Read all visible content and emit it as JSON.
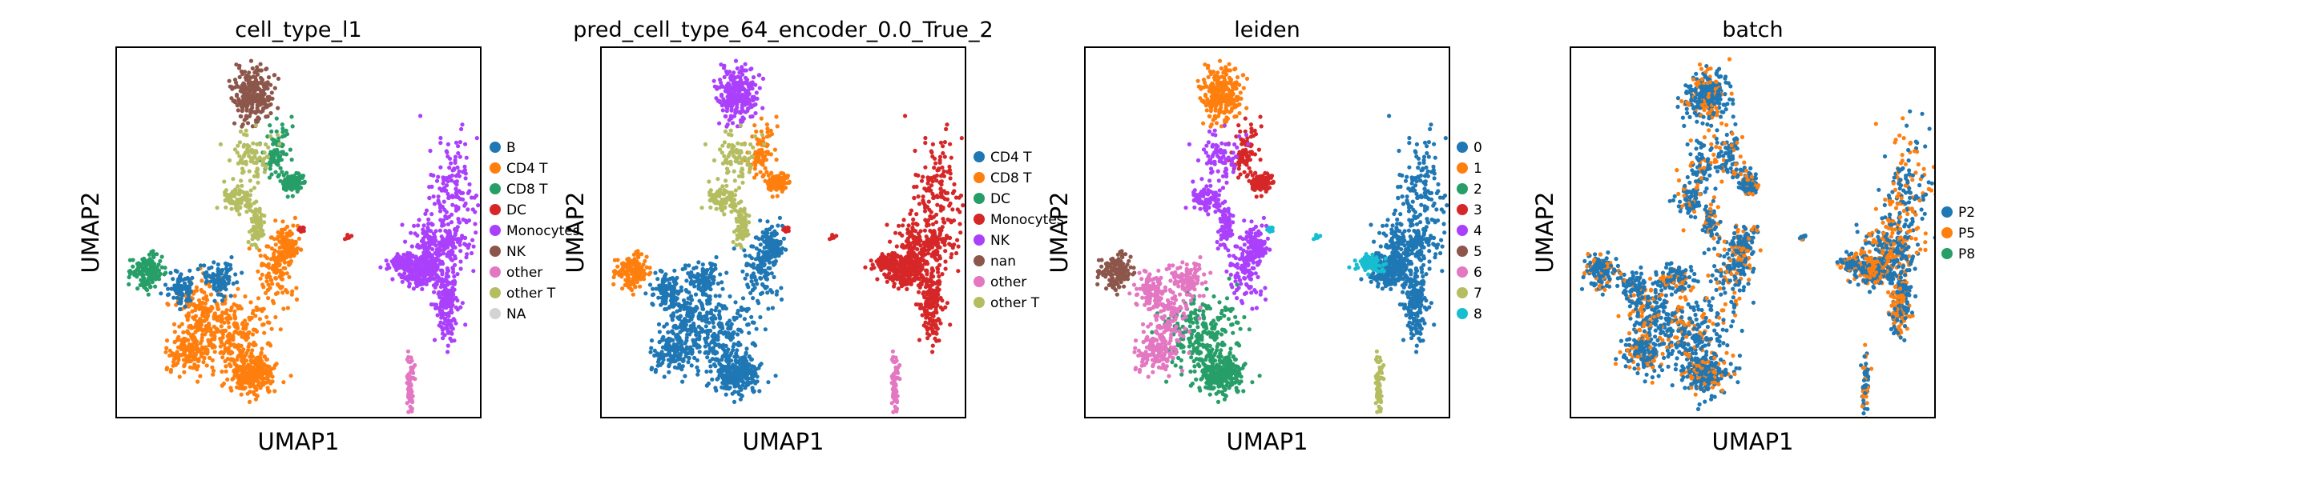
{
  "chart_data": [
    {
      "type": "scatter",
      "title": "cell_type_l1",
      "xlabel": "UMAP1",
      "ylabel": "UMAP2",
      "grid": false,
      "legend_position": "right",
      "series": [
        {
          "name": "B",
          "color": "#1f77b4"
        },
        {
          "name": "CD4 T",
          "color": "#ff7f0e"
        },
        {
          "name": "CD8 T",
          "color": "#279e68"
        },
        {
          "name": "DC",
          "color": "#d62728"
        },
        {
          "name": "Monocytes",
          "color": "#aa40fc"
        },
        {
          "name": "NK",
          "color": "#8c564b"
        },
        {
          "name": "other",
          "color": "#e377c2"
        },
        {
          "name": "other T",
          "color": "#b5bd61"
        },
        {
          "name": "NA",
          "color": "#d3d3d3"
        }
      ],
      "clusters": {
        "left_island": "CD8 T",
        "lower_left_1": "CD4 T",
        "lower_left_2": "CD4 T",
        "lower_left_top": "B",
        "lower_mid": "CD4 T",
        "top_peak": "NK",
        "top_right_arm": "CD8 T",
        "top_mid": "other T",
        "right_body": "Monocytes",
        "right_tail": "Monocytes",
        "bottom_tail": "other",
        "dc_patch": "DC"
      }
    },
    {
      "type": "scatter",
      "title": "pred_cell_type_64_encoder_0.0_True_2",
      "xlabel": "UMAP1",
      "ylabel": "UMAP2",
      "grid": false,
      "legend_position": "right",
      "series": [
        {
          "name": "CD4 T",
          "color": "#1f77b4"
        },
        {
          "name": "CD8 T",
          "color": "#ff7f0e"
        },
        {
          "name": "DC",
          "color": "#279e68"
        },
        {
          "name": "Monocytes",
          "color": "#d62728"
        },
        {
          "name": "NK",
          "color": "#aa40fc"
        },
        {
          "name": "nan",
          "color": "#8c564b"
        },
        {
          "name": "other",
          "color": "#e377c2"
        },
        {
          "name": "other T",
          "color": "#b5bd61"
        }
      ],
      "clusters": {
        "left_island": "CD8 T",
        "lower_left_1": "CD4 T",
        "lower_left_2": "CD4 T",
        "lower_left_top": "CD4 T",
        "lower_mid": "CD4 T",
        "top_peak": "NK",
        "top_right_arm": "CD8 T",
        "top_mid": "other T",
        "right_body": "Monocytes",
        "right_tail": "Monocytes",
        "bottom_tail": "other",
        "dc_patch": "Monocytes"
      }
    },
    {
      "type": "scatter",
      "title": "leiden",
      "xlabel": "UMAP1",
      "ylabel": "UMAP2",
      "grid": false,
      "legend_position": "right",
      "series": [
        {
          "name": "0",
          "color": "#1f77b4"
        },
        {
          "name": "1",
          "color": "#ff7f0e"
        },
        {
          "name": "2",
          "color": "#279e68"
        },
        {
          "name": "3",
          "color": "#d62728"
        },
        {
          "name": "4",
          "color": "#aa40fc"
        },
        {
          "name": "5",
          "color": "#8c564b"
        },
        {
          "name": "6",
          "color": "#e377c2"
        },
        {
          "name": "7",
          "color": "#b5bd61"
        },
        {
          "name": "8",
          "color": "#17becf"
        }
      ],
      "clusters": {
        "left_island": "5",
        "lower_left_1": "2",
        "lower_left_2": "6",
        "lower_left_top": "6",
        "lower_mid": "4",
        "top_peak": "1",
        "top_right_arm": "3",
        "top_mid": "4",
        "right_body": "0",
        "right_tail": "8",
        "bottom_tail": "7",
        "dc_patch": "8"
      }
    },
    {
      "type": "scatter",
      "title": "batch",
      "xlabel": "UMAP1",
      "ylabel": "UMAP2",
      "grid": false,
      "legend_position": "right",
      "series": [
        {
          "name": "P2",
          "color": "#1f77b4"
        },
        {
          "name": "P5",
          "color": "#ff7f0e"
        },
        {
          "name": "P8",
          "color": "#279e68"
        }
      ],
      "clusters": {
        "left_island": "P2",
        "lower_left_1": "P2",
        "lower_left_2": "P2",
        "lower_left_top": "P2",
        "lower_mid": "P2",
        "top_peak": "P2",
        "top_right_arm": "P2",
        "top_mid": "P2",
        "right_body": "P5",
        "right_tail": "P2",
        "bottom_tail": "P2",
        "dc_patch": "P2"
      }
    }
  ]
}
